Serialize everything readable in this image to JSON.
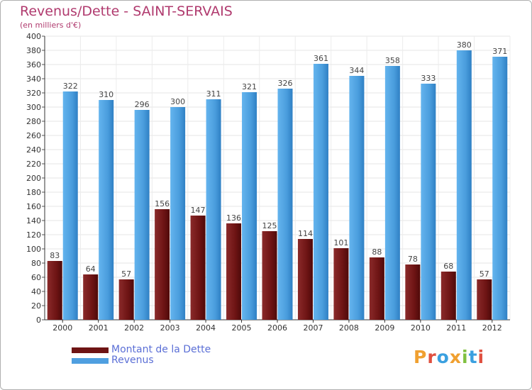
{
  "header": {
    "title": "Revenus/Dette - SAINT-SERVAIS",
    "subtitle": "(en milliers d'€)"
  },
  "chart_data": {
    "type": "bar",
    "categories": [
      "2000",
      "2001",
      "2002",
      "2003",
      "2004",
      "2005",
      "2006",
      "2007",
      "2008",
      "2009",
      "2010",
      "2011",
      "2012"
    ],
    "series": [
      {
        "name": "Montant de la Dette",
        "values": [
          83,
          64,
          57,
          156,
          147,
          136,
          125,
          114,
          101,
          88,
          78,
          68,
          57
        ],
        "color": "#7a1e1e"
      },
      {
        "name": "Revenus",
        "values": [
          322,
          310,
          296,
          300,
          311,
          321,
          326,
          361,
          344,
          358,
          333,
          380,
          371
        ],
        "color": "#4f9fe0"
      }
    ],
    "ylim": [
      0,
      400
    ],
    "ytick_step": 20,
    "grid": true,
    "legend": "bottom-left"
  },
  "logo": {
    "letters": [
      "P",
      "r",
      "o",
      "x",
      "i",
      "t",
      "i"
    ],
    "colors": [
      "#f0a030",
      "#e05040",
      "#3aa0e0",
      "#f0a030",
      "#80c040",
      "#3aa0e0",
      "#e05040"
    ]
  }
}
